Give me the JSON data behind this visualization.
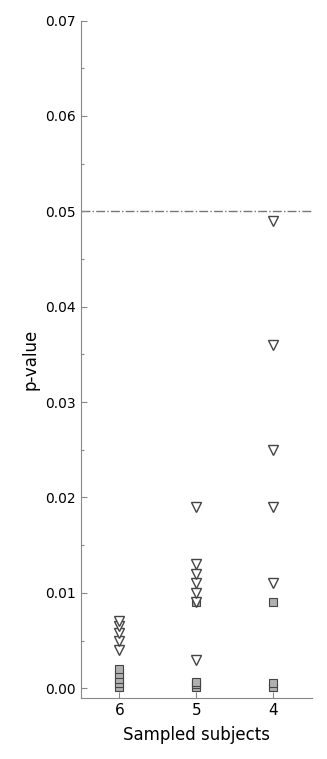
{
  "xlabel": "Sampled subjects",
  "ylabel": "p-value",
  "ylim": [
    -0.001,
    0.07
  ],
  "xlim": [
    0.5,
    3.5
  ],
  "yticks": [
    0.0,
    0.01,
    0.02,
    0.03,
    0.04,
    0.05,
    0.06,
    0.07
  ],
  "xtick_labels": [
    "6",
    "5",
    "4"
  ],
  "xtick_positions": [
    1,
    2,
    3
  ],
  "hline_y": 0.05,
  "background_color": "#ffffff",
  "triangle_facecolor": "#ffffff",
  "triangle_edgecolor": "#444444",
  "square_facecolor": "#b0b0b0",
  "square_edgecolor": "#444444",
  "groups": {
    "6": {
      "x": 1,
      "triangles": [
        0.004,
        0.005,
        0.0058,
        0.0065,
        0.007
      ],
      "squares": [
        0.0001,
        0.0005,
        0.001,
        0.0015,
        0.002
      ]
    },
    "5": {
      "x": 2,
      "triangles": [
        0.003,
        0.009,
        0.01,
        0.011,
        0.012,
        0.013,
        0.019
      ],
      "squares": [
        0.0001,
        0.0004,
        0.0007,
        0.009
      ]
    },
    "4": {
      "x": 3,
      "triangles": [
        0.011,
        0.019,
        0.025,
        0.036,
        0.049
      ],
      "squares": [
        0.0001,
        0.0006,
        0.009
      ]
    }
  }
}
